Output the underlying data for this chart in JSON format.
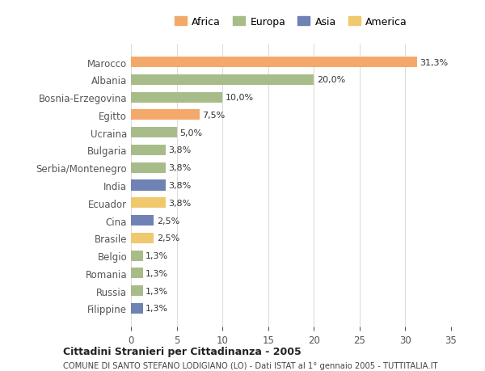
{
  "countries": [
    "Marocco",
    "Albania",
    "Bosnia-Erzegovina",
    "Egitto",
    "Ucraina",
    "Bulgaria",
    "Serbia/Montenegro",
    "India",
    "Ecuador",
    "Cina",
    "Brasile",
    "Belgio",
    "Romania",
    "Russia",
    "Filippine"
  ],
  "values": [
    31.3,
    20.0,
    10.0,
    7.5,
    5.0,
    3.8,
    3.8,
    3.8,
    3.8,
    2.5,
    2.5,
    1.3,
    1.3,
    1.3,
    1.3
  ],
  "labels": [
    "31,3%",
    "20,0%",
    "10,0%",
    "7,5%",
    "5,0%",
    "3,8%",
    "3,8%",
    "3,8%",
    "3,8%",
    "2,5%",
    "2,5%",
    "1,3%",
    "1,3%",
    "1,3%",
    "1,3%"
  ],
  "continents": [
    "Africa",
    "Europa",
    "Europa",
    "Africa",
    "Europa",
    "Europa",
    "Europa",
    "Asia",
    "America",
    "Asia",
    "America",
    "Europa",
    "Europa",
    "Europa",
    "Asia"
  ],
  "colors": {
    "Africa": "#F4A96A",
    "Europa": "#A8BC8A",
    "Asia": "#6E82B4",
    "America": "#F0C96E"
  },
  "legend_order": [
    "Africa",
    "Europa",
    "Asia",
    "America"
  ],
  "title1": "Cittadini Stranieri per Cittadinanza - 2005",
  "title2": "COMUNE DI SANTO STEFANO LODIGIANO (LO) - Dati ISTAT al 1° gennaio 2005 - TUTTITALIA.IT",
  "xlim": [
    0,
    35
  ],
  "xticks": [
    0,
    5,
    10,
    15,
    20,
    25,
    30,
    35
  ],
  "bg_color": "#ffffff",
  "grid_color": "#dddddd"
}
